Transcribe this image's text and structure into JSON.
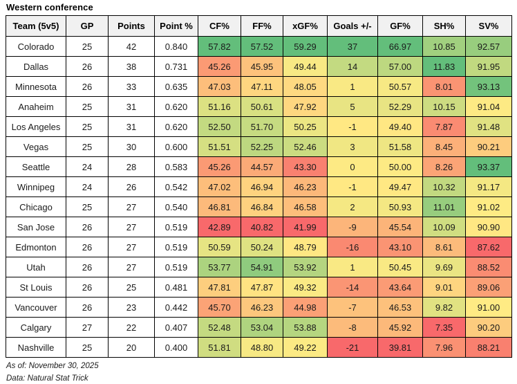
{
  "title": "Western conference",
  "footnotes": [
    "As of: November 30, 2025",
    "Data: Natural Stat Trick"
  ],
  "colormap": {
    "min_color": "#F8696B",
    "mid_color": "#FFEB84",
    "max_color": "#63BE7B",
    "midpoint": "median",
    "scope": "per-column"
  },
  "chart_data": {
    "type": "table",
    "title": "Western conference",
    "columns": [
      "Team (5v5)",
      "GP",
      "Points",
      "Point %",
      "CF%",
      "FF%",
      "xGF%",
      "Goals +/-",
      "GF%",
      "SH%",
      "SV%"
    ],
    "color_scaled_columns": [
      "CF%",
      "FF%",
      "xGF%",
      "Goals +/-",
      "GF%",
      "SH%",
      "SV%"
    ],
    "rows": [
      [
        "Colorado",
        "25",
        "42",
        "0.840",
        "57.82",
        "57.52",
        "59.29",
        "37",
        "66.97",
        "10.85",
        "92.57"
      ],
      [
        "Dallas",
        "26",
        "38",
        "0.731",
        "45.26",
        "45.95",
        "49.44",
        "14",
        "57.00",
        "11.83",
        "91.95"
      ],
      [
        "Minnesota",
        "26",
        "33",
        "0.635",
        "47.03",
        "47.11",
        "48.05",
        "1",
        "50.57",
        "8.01",
        "93.13"
      ],
      [
        "Anaheim",
        "25",
        "31",
        "0.620",
        "51.16",
        "50.61",
        "47.92",
        "5",
        "52.29",
        "10.15",
        "91.04"
      ],
      [
        "Los Angeles",
        "25",
        "31",
        "0.620",
        "52.50",
        "51.70",
        "50.25",
        "-1",
        "49.40",
        "7.87",
        "91.48"
      ],
      [
        "Vegas",
        "25",
        "30",
        "0.600",
        "51.51",
        "52.25",
        "52.46",
        "3",
        "51.58",
        "8.45",
        "90.21"
      ],
      [
        "Seattle",
        "24",
        "28",
        "0.583",
        "45.26",
        "44.57",
        "43.30",
        "0",
        "50.00",
        "8.26",
        "93.37"
      ],
      [
        "Winnipeg",
        "24",
        "26",
        "0.542",
        "47.02",
        "46.94",
        "46.23",
        "-1",
        "49.47",
        "10.32",
        "91.17"
      ],
      [
        "Chicago",
        "25",
        "27",
        "0.540",
        "46.81",
        "46.84",
        "46.58",
        "2",
        "50.93",
        "11.01",
        "91.02"
      ],
      [
        "San Jose",
        "26",
        "27",
        "0.519",
        "42.89",
        "40.82",
        "41.99",
        "-9",
        "45.54",
        "10.09",
        "90.90"
      ],
      [
        "Edmonton",
        "26",
        "27",
        "0.519",
        "50.59",
        "50.24",
        "48.79",
        "-16",
        "43.10",
        "8.61",
        "87.62"
      ],
      [
        "Utah",
        "26",
        "27",
        "0.519",
        "53.77",
        "54.91",
        "53.92",
        "1",
        "50.45",
        "9.69",
        "88.52"
      ],
      [
        "St Louis",
        "26",
        "25",
        "0.481",
        "47.81",
        "47.87",
        "49.32",
        "-14",
        "43.64",
        "9.01",
        "89.06"
      ],
      [
        "Vancouver",
        "26",
        "23",
        "0.442",
        "45.70",
        "46.23",
        "44.98",
        "-7",
        "46.53",
        "9.82",
        "91.00"
      ],
      [
        "Calgary",
        "27",
        "22",
        "0.407",
        "52.48",
        "53.04",
        "53.88",
        "-8",
        "45.92",
        "7.35",
        "90.20"
      ],
      [
        "Nashville",
        "25",
        "20",
        "0.400",
        "51.81",
        "48.80",
        "49.22",
        "-21",
        "39.81",
        "7.96",
        "88.21"
      ]
    ],
    "footnotes": [
      "As of: November 30, 2025",
      "Data: Natural Stat Trick"
    ],
    "legend_position": "none",
    "grid": "all-borders"
  }
}
